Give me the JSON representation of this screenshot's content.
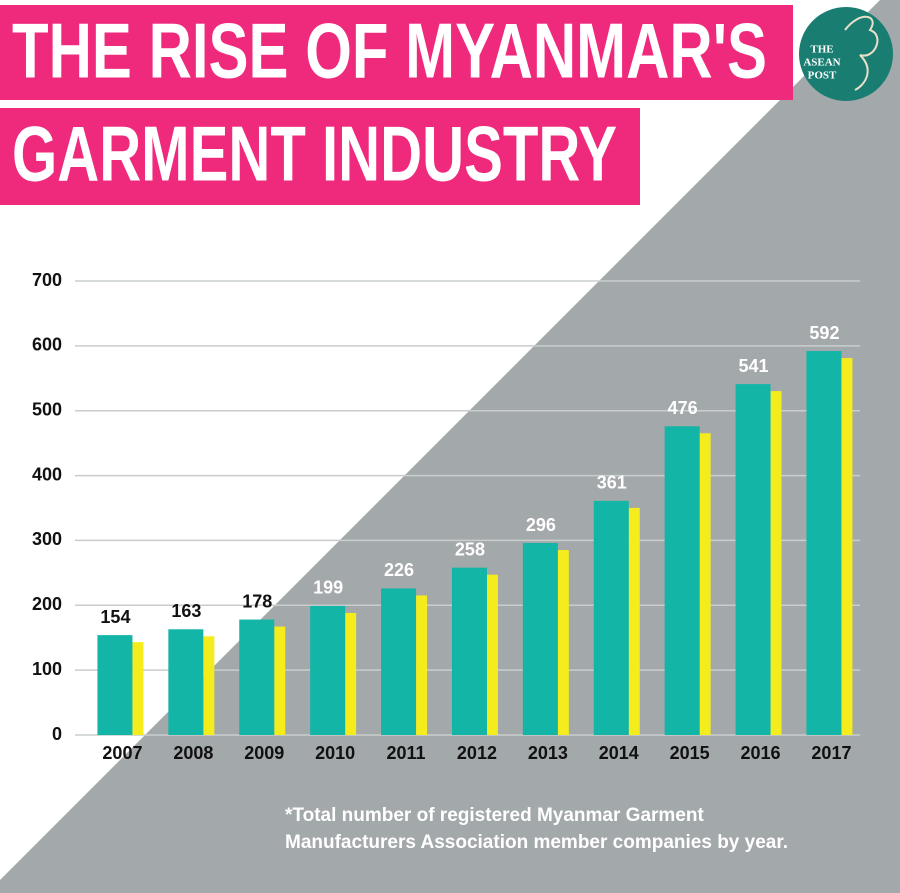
{
  "chart_data": {
    "type": "bar",
    "title": [
      "THE RISE OF MYANMAR'S",
      "GARMENT INDUSTRY"
    ],
    "categories": [
      "2007",
      "2008",
      "2009",
      "2010",
      "2011",
      "2012",
      "2013",
      "2014",
      "2015",
      "2016",
      "2017"
    ],
    "values": [
      154,
      163,
      178,
      199,
      226,
      258,
      296,
      361,
      476,
      541,
      592
    ],
    "color": "#13b5a7",
    "shadow_color": "#f5ec1e",
    "ylim": [
      0,
      700
    ],
    "yticks": [
      0,
      100,
      200,
      300,
      400,
      500,
      600,
      700
    ],
    "grid": true,
    "note": [
      "*Total number of registered Myanmar Garment",
      "Manufacturers Association member companies by year."
    ]
  },
  "logo": [
    "THE",
    "ASEAN",
    "POST"
  ]
}
